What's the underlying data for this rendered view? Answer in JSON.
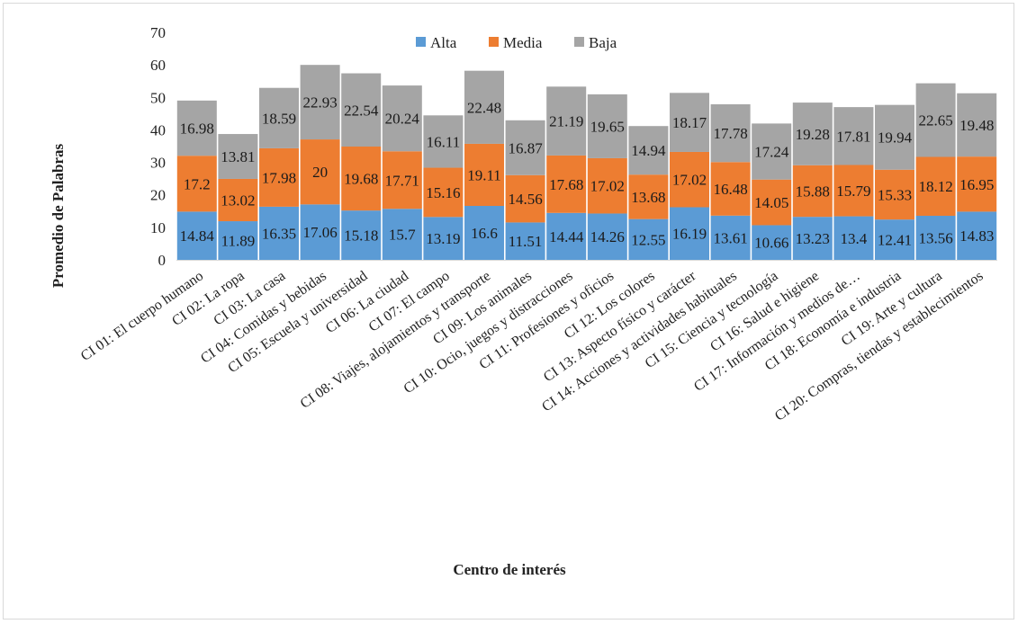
{
  "chart_data": {
    "type": "bar",
    "stacked": true,
    "xlabel": "Centro de interés",
    "ylabel": "Promedio de Palabras",
    "ylim": [
      0,
      70
    ],
    "yticks": [
      0,
      10,
      20,
      30,
      40,
      50,
      60,
      70
    ],
    "grid": false,
    "legend_position": "top",
    "categories": [
      "CI 01: El cuerpo humano",
      "CI 02: La ropa",
      "CI 03: La casa",
      "CI 04: Comidas y bebidas",
      "CI 05: Escuela y universidad",
      "CI 06: La ciudad",
      "CI 07: El campo",
      "CI 08: Viajes, alojamientos y transporte",
      "CI 09: Los animales",
      "CI 10: Ocio, juegos y distracciones",
      "CI 11: Profesiones y oficios",
      "CI 12: Los colores",
      "CI 13: Aspecto físico y carácter",
      "CI 14: Acciones y actividades habituales",
      "CI 15: Ciencia y tecnología",
      "CI 16: Salud e higiene",
      "CI 17: Información y medios de…",
      "CI 18: Economía e industria",
      "CI 19: Arte y cultura",
      "CI 20: Compras, tiendas y establecimientos"
    ],
    "series": [
      {
        "name": "Alta",
        "color": "#5b9bd5",
        "values": [
          14.84,
          11.89,
          16.35,
          17.06,
          15.18,
          15.7,
          13.19,
          16.6,
          11.51,
          14.44,
          14.26,
          12.55,
          16.19,
          13.61,
          10.66,
          13.23,
          13.4,
          12.41,
          13.56,
          14.83
        ]
      },
      {
        "name": "Media",
        "color": "#ed7d31",
        "values": [
          17.2,
          13.02,
          17.98,
          20,
          19.68,
          17.71,
          15.16,
          19.11,
          14.56,
          17.68,
          17.02,
          13.68,
          17.02,
          16.48,
          14.05,
          15.88,
          15.79,
          15.33,
          18.12,
          16.95
        ]
      },
      {
        "name": "Baja",
        "color": "#a5a5a5",
        "values": [
          16.98,
          13.81,
          18.59,
          22.93,
          22.54,
          20.24,
          16.11,
          22.48,
          16.87,
          21.19,
          19.65,
          14.94,
          18.17,
          17.78,
          17.24,
          19.28,
          17.81,
          19.94,
          22.65,
          19.48
        ]
      }
    ]
  }
}
